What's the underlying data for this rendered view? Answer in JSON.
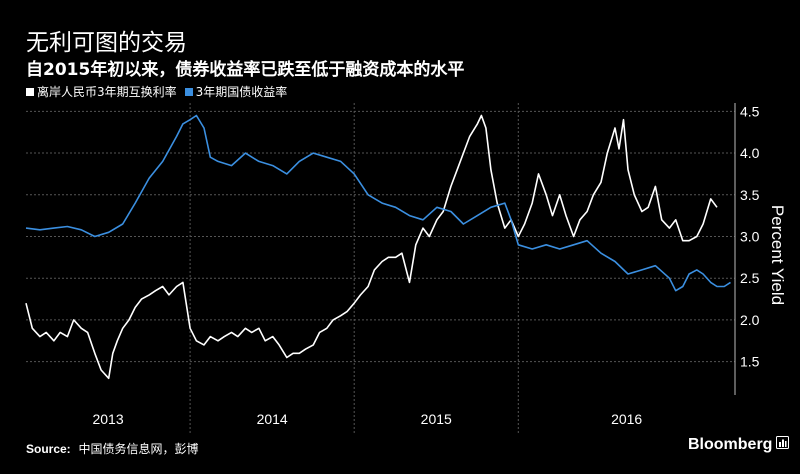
{
  "header": {
    "title": "无利可图的交易",
    "subtitle": "自2015年初以来，债券收益率已跌至低于融资成本的水平"
  },
  "legend": {
    "items": [
      {
        "label": "离岸人民币3年期互换利率",
        "color": "#ffffff"
      },
      {
        "label": "3年期国债收益率",
        "color": "#3b8fe0"
      }
    ]
  },
  "footer": {
    "source_label": "Source:",
    "source_text": "中国债务信息网，彭博",
    "brand": "Bloomberg",
    "brand_icon": "bloomberg-news-icon"
  },
  "colors": {
    "background": "#000000",
    "grid": "#555555",
    "swap": "#ffffff",
    "bond": "#3b8fe0"
  },
  "chart_data": {
    "type": "line",
    "ylabel": "Percent Yield",
    "ylim": [
      1.1,
      4.6
    ],
    "yticks": [
      1.5,
      2.0,
      2.5,
      3.0,
      3.5,
      4.0,
      4.5
    ],
    "xlim": [
      "2012-07-01",
      "2016-10-25"
    ],
    "year_labels": [
      "2013",
      "2014",
      "2015",
      "2016"
    ],
    "year_separators": [
      "2013-07-01",
      "2014-07-01",
      "2015-07-01"
    ],
    "grid": true,
    "legend_position": "top-left",
    "series": [
      {
        "name": "离岸人民币3年期互换利率",
        "color": "#ffffff",
        "points": [
          [
            "2012-07-01",
            2.2
          ],
          [
            "2012-07-15",
            1.9
          ],
          [
            "2012-08-01",
            1.8
          ],
          [
            "2012-08-15",
            1.85
          ],
          [
            "2012-09-01",
            1.75
          ],
          [
            "2012-09-15",
            1.85
          ],
          [
            "2012-10-01",
            1.8
          ],
          [
            "2012-10-15",
            2.0
          ],
          [
            "2012-11-01",
            1.9
          ],
          [
            "2012-11-15",
            1.85
          ],
          [
            "2012-12-01",
            1.6
          ],
          [
            "2012-12-15",
            1.4
          ],
          [
            "2013-01-01",
            1.3
          ],
          [
            "2013-01-10",
            1.6
          ],
          [
            "2013-01-20",
            1.75
          ],
          [
            "2013-02-01",
            1.9
          ],
          [
            "2013-02-15",
            2.0
          ],
          [
            "2013-03-01",
            2.15
          ],
          [
            "2013-03-15",
            2.25
          ],
          [
            "2013-04-01",
            2.3
          ],
          [
            "2013-04-15",
            2.35
          ],
          [
            "2013-05-01",
            2.4
          ],
          [
            "2013-05-15",
            2.3
          ],
          [
            "2013-06-01",
            2.4
          ],
          [
            "2013-06-15",
            2.45
          ],
          [
            "2013-07-01",
            1.9
          ],
          [
            "2013-07-15",
            1.75
          ],
          [
            "2013-08-01",
            1.7
          ],
          [
            "2013-08-15",
            1.8
          ],
          [
            "2013-09-01",
            1.75
          ],
          [
            "2013-09-15",
            1.8
          ],
          [
            "2013-10-01",
            1.85
          ],
          [
            "2013-10-15",
            1.8
          ],
          [
            "2013-11-01",
            1.9
          ],
          [
            "2013-11-15",
            1.85
          ],
          [
            "2013-12-01",
            1.9
          ],
          [
            "2013-12-15",
            1.75
          ],
          [
            "2014-01-01",
            1.8
          ],
          [
            "2014-01-15",
            1.7
          ],
          [
            "2014-02-01",
            1.55
          ],
          [
            "2014-02-15",
            1.6
          ],
          [
            "2014-03-01",
            1.6
          ],
          [
            "2014-03-15",
            1.65
          ],
          [
            "2014-04-01",
            1.7
          ],
          [
            "2014-04-15",
            1.85
          ],
          [
            "2014-05-01",
            1.9
          ],
          [
            "2014-05-15",
            2.0
          ],
          [
            "2014-06-01",
            2.05
          ],
          [
            "2014-06-15",
            2.1
          ],
          [
            "2014-07-01",
            2.2
          ],
          [
            "2014-07-15",
            2.3
          ],
          [
            "2014-08-01",
            2.4
          ],
          [
            "2014-08-15",
            2.6
          ],
          [
            "2014-09-01",
            2.7
          ],
          [
            "2014-09-15",
            2.75
          ],
          [
            "2014-10-01",
            2.75
          ],
          [
            "2014-10-15",
            2.8
          ],
          [
            "2014-11-01",
            2.45
          ],
          [
            "2014-11-15",
            2.9
          ],
          [
            "2014-12-01",
            3.1
          ],
          [
            "2014-12-15",
            3.0
          ],
          [
            "2015-01-01",
            3.2
          ],
          [
            "2015-01-15",
            3.3
          ],
          [
            "2015-02-01",
            3.6
          ],
          [
            "2015-02-15",
            3.8
          ],
          [
            "2015-03-01",
            4.0
          ],
          [
            "2015-03-15",
            4.2
          ],
          [
            "2015-04-01",
            4.35
          ],
          [
            "2015-04-10",
            4.45
          ],
          [
            "2015-04-20",
            4.3
          ],
          [
            "2015-05-01",
            3.8
          ],
          [
            "2015-05-15",
            3.4
          ],
          [
            "2015-06-01",
            3.1
          ],
          [
            "2015-06-15",
            3.2
          ],
          [
            "2015-07-01",
            3.0
          ],
          [
            "2015-07-15",
            3.15
          ],
          [
            "2015-08-01",
            3.4
          ],
          [
            "2015-08-15",
            3.75
          ],
          [
            "2015-09-01",
            3.5
          ],
          [
            "2015-09-15",
            3.25
          ],
          [
            "2015-10-01",
            3.5
          ],
          [
            "2015-10-15",
            3.25
          ],
          [
            "2015-11-01",
            3.0
          ],
          [
            "2015-11-15",
            3.2
          ],
          [
            "2015-12-01",
            3.3
          ],
          [
            "2015-12-15",
            3.5
          ],
          [
            "2016-01-01",
            3.65
          ],
          [
            "2016-01-15",
            4.0
          ],
          [
            "2016-02-01",
            4.3
          ],
          [
            "2016-02-10",
            4.05
          ],
          [
            "2016-02-20",
            4.4
          ],
          [
            "2016-03-01",
            3.8
          ],
          [
            "2016-03-15",
            3.5
          ],
          [
            "2016-04-01",
            3.3
          ],
          [
            "2016-04-15",
            3.35
          ],
          [
            "2016-05-01",
            3.6
          ],
          [
            "2016-05-15",
            3.2
          ],
          [
            "2016-06-01",
            3.1
          ],
          [
            "2016-06-15",
            3.2
          ],
          [
            "2016-07-01",
            2.95
          ],
          [
            "2016-07-15",
            2.95
          ],
          [
            "2016-08-01",
            3.0
          ],
          [
            "2016-08-15",
            3.15
          ],
          [
            "2016-09-01",
            3.45
          ],
          [
            "2016-09-15",
            3.35
          ]
        ]
      },
      {
        "name": "3年期国债收益率",
        "color": "#3b8fe0",
        "points": [
          [
            "2012-07-01",
            3.1
          ],
          [
            "2012-08-01",
            3.08
          ],
          [
            "2012-09-01",
            3.1
          ],
          [
            "2012-10-01",
            3.12
          ],
          [
            "2012-11-01",
            3.08
          ],
          [
            "2012-12-01",
            3.0
          ],
          [
            "2013-01-01",
            3.05
          ],
          [
            "2013-02-01",
            3.15
          ],
          [
            "2013-03-01",
            3.4
          ],
          [
            "2013-04-01",
            3.7
          ],
          [
            "2013-05-01",
            3.9
          ],
          [
            "2013-06-01",
            4.2
          ],
          [
            "2013-06-15",
            4.35
          ],
          [
            "2013-07-01",
            4.4
          ],
          [
            "2013-07-15",
            4.45
          ],
          [
            "2013-08-01",
            4.3
          ],
          [
            "2013-08-15",
            3.95
          ],
          [
            "2013-09-01",
            3.9
          ],
          [
            "2013-10-01",
            3.85
          ],
          [
            "2013-11-01",
            4.0
          ],
          [
            "2013-12-01",
            3.9
          ],
          [
            "2014-01-01",
            3.85
          ],
          [
            "2014-02-01",
            3.75
          ],
          [
            "2014-03-01",
            3.9
          ],
          [
            "2014-04-01",
            4.0
          ],
          [
            "2014-05-01",
            3.95
          ],
          [
            "2014-06-01",
            3.9
          ],
          [
            "2014-07-01",
            3.75
          ],
          [
            "2014-08-01",
            3.5
          ],
          [
            "2014-09-01",
            3.4
          ],
          [
            "2014-10-01",
            3.35
          ],
          [
            "2014-11-01",
            3.25
          ],
          [
            "2014-12-01",
            3.2
          ],
          [
            "2015-01-01",
            3.35
          ],
          [
            "2015-02-01",
            3.3
          ],
          [
            "2015-03-01",
            3.15
          ],
          [
            "2015-04-01",
            3.25
          ],
          [
            "2015-05-01",
            3.35
          ],
          [
            "2015-06-01",
            3.4
          ],
          [
            "2015-06-15",
            3.2
          ],
          [
            "2015-07-01",
            2.9
          ],
          [
            "2015-08-01",
            2.85
          ],
          [
            "2015-09-01",
            2.9
          ],
          [
            "2015-10-01",
            2.85
          ],
          [
            "2015-11-01",
            2.9
          ],
          [
            "2015-12-01",
            2.95
          ],
          [
            "2016-01-01",
            2.8
          ],
          [
            "2016-02-01",
            2.7
          ],
          [
            "2016-03-01",
            2.55
          ],
          [
            "2016-04-01",
            2.6
          ],
          [
            "2016-05-01",
            2.65
          ],
          [
            "2016-06-01",
            2.5
          ],
          [
            "2016-06-15",
            2.35
          ],
          [
            "2016-07-01",
            2.4
          ],
          [
            "2016-07-15",
            2.55
          ],
          [
            "2016-08-01",
            2.6
          ],
          [
            "2016-08-15",
            2.55
          ],
          [
            "2016-09-01",
            2.45
          ],
          [
            "2016-09-15",
            2.4
          ],
          [
            "2016-10-01",
            2.4
          ],
          [
            "2016-10-15",
            2.45
          ]
        ]
      }
    ]
  }
}
